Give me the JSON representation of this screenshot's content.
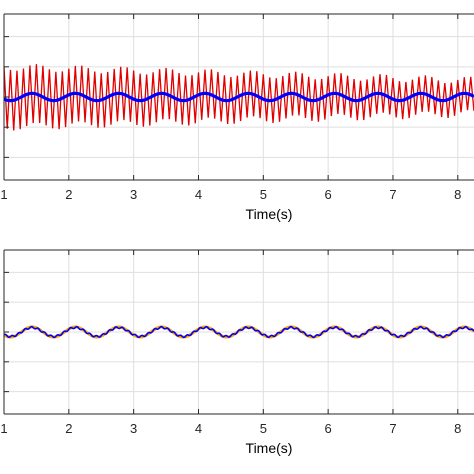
{
  "chart_data": [
    {
      "type": "line",
      "xlabel": "Time(s)",
      "ylabel": "",
      "xlim": [
        1,
        8.25
      ],
      "xticks": [
        1,
        2,
        3,
        4,
        5,
        6,
        7,
        8
      ],
      "xtick_labels": [
        "1",
        "2",
        "3",
        "4",
        "5",
        "6",
        "7",
        "8"
      ],
      "ylim": [
        -2.75,
        2.75
      ],
      "yticks": [
        -2,
        -1,
        0,
        1,
        2
      ],
      "grid": true,
      "series": [
        {
          "color": "#e00000",
          "center": 0,
          "envelope_start": 1.0,
          "envelope_end": 0.55,
          "oscillation_hz": 10
        },
        {
          "color": "#0000ff",
          "center": 0,
          "amplitude": 0.12,
          "ripple_hz": 1.5
        }
      ]
    },
    {
      "type": "line",
      "xlabel": "Time(s)",
      "ylabel": "",
      "xlim": [
        1,
        8.25
      ],
      "xticks": [
        1,
        2,
        3,
        4,
        5,
        6,
        7,
        8
      ],
      "xtick_labels": [
        "1",
        "2",
        "3",
        "4",
        "5",
        "6",
        "7",
        "8"
      ],
      "ylim": [
        -2.75,
        2.75
      ],
      "yticks": [
        -2,
        -1,
        0,
        1,
        2
      ],
      "grid": true,
      "series": [
        {
          "color": "#ffa500",
          "center": 0,
          "amplitude": 0.17,
          "ripple_hz": 1.5
        },
        {
          "color": "#0000ff",
          "center": 0,
          "amplitude": 0.15,
          "ripple_hz": 1.5,
          "fine_hz": 10
        }
      ]
    }
  ]
}
